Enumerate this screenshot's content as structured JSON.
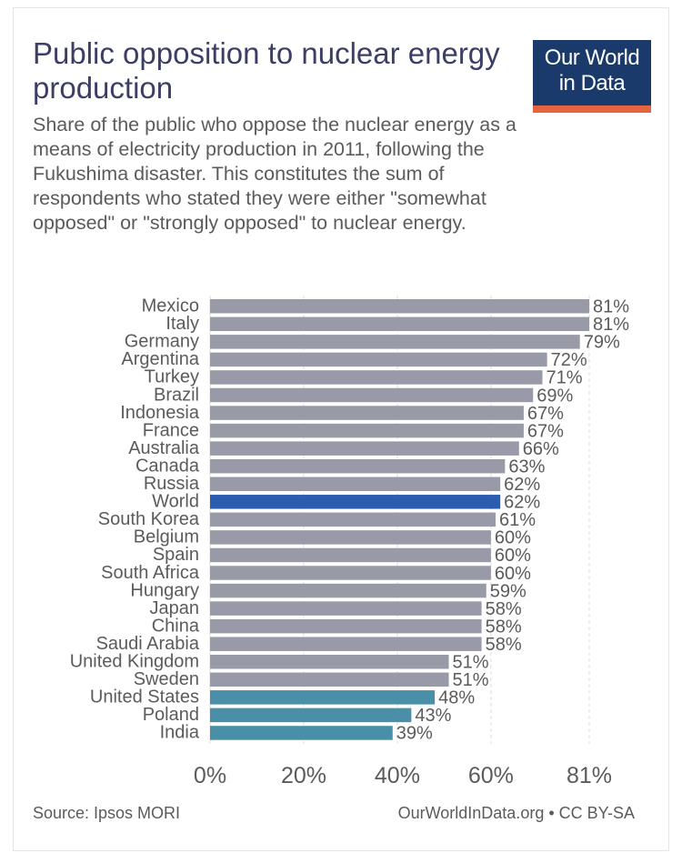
{
  "header": {
    "title": "Public opposition to nuclear energy production",
    "subtitle": "Share of the public who oppose the nuclear energy as a means of electricity production in 2011, following the Fukushima disaster. This constitutes the sum of respondents who stated they were either \"somewhat opposed\" or \"strongly opposed\" to nuclear energy.",
    "logo_line1": "Our World",
    "logo_line2": "in Data"
  },
  "colors": {
    "logo_bg": "#1a3a6b",
    "logo_accent": "#e3643f",
    "bar_default": "#999aa8",
    "bar_world": "#2a5db0",
    "bar_highlight": "#4a8fa8",
    "label_text": "#5b5b5b",
    "grid": "#dddddd"
  },
  "chart_data": {
    "type": "bar",
    "orientation": "horizontal",
    "categories": [
      "Mexico",
      "Italy",
      "Germany",
      "Argentina",
      "Turkey",
      "Brazil",
      "Indonesia",
      "France",
      "Australia",
      "Canada",
      "Russia",
      "World",
      "South Korea",
      "Belgium",
      "Spain",
      "South Africa",
      "Hungary",
      "Japan",
      "China",
      "Saudi Arabia",
      "United Kingdom",
      "Sweden",
      "United States",
      "Poland",
      "India"
    ],
    "values": [
      81,
      81,
      79,
      72,
      71,
      69,
      67,
      67,
      66,
      63,
      62,
      62,
      61,
      60,
      60,
      60,
      59,
      58,
      58,
      58,
      51,
      51,
      48,
      43,
      39
    ],
    "value_labels": [
      "81%",
      "81%",
      "79%",
      "72%",
      "71%",
      "69%",
      "67%",
      "67%",
      "66%",
      "63%",
      "62%",
      "62%",
      "61%",
      "60%",
      "60%",
      "60%",
      "59%",
      "58%",
      "58%",
      "58%",
      "51%",
      "51%",
      "48%",
      "43%",
      "39%"
    ],
    "highlight": {
      "World": "world",
      "United States": "highlight",
      "Poland": "highlight",
      "India": "highlight"
    },
    "x_ticks": [
      0,
      20,
      40,
      60,
      81
    ],
    "x_tick_labels": [
      "0%",
      "20%",
      "40%",
      "60%",
      "81%"
    ],
    "xlim": [
      0,
      81
    ],
    "grid": true
  },
  "footer": {
    "source": "Source: Ipsos MORI",
    "credit": "OurWorldInData.org • CC BY-SA"
  }
}
